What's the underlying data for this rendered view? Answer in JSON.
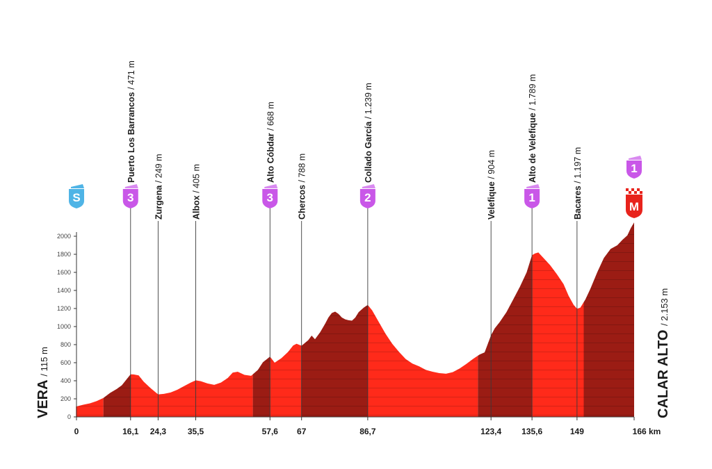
{
  "chart_data": {
    "type": "area",
    "title": "",
    "xlabel": "",
    "ylabel": "",
    "xlim": [
      0,
      166
    ],
    "ylim": [
      0,
      2153
    ],
    "y_ticks": [
      0,
      200,
      400,
      600,
      800,
      1000,
      1200,
      1400,
      1600,
      1800,
      2000
    ],
    "x_ticks": [
      {
        "km": 0,
        "label": "0"
      },
      {
        "km": 16.1,
        "label": "16,1"
      },
      {
        "km": 24.3,
        "label": "24,3"
      },
      {
        "km": 35.5,
        "label": "35,5"
      },
      {
        "km": 57.6,
        "label": "57,6"
      },
      {
        "km": 67,
        "label": "67"
      },
      {
        "km": 86.7,
        "label": "86,7"
      },
      {
        "km": 123.4,
        "label": "123,4"
      },
      {
        "km": 135.6,
        "label": "135,6"
      },
      {
        "km": 149,
        "label": "149"
      },
      {
        "km": 166,
        "label": "166 km"
      }
    ],
    "start": {
      "name": "VERA",
      "alt": "/ 115 m",
      "badge": "S"
    },
    "finish": {
      "name": "CALAR ALTO",
      "alt": "/ 2.153 m",
      "badge": "M",
      "category": "1"
    },
    "waypoints": [
      {
        "km": 16.1,
        "name": "Puerto Los Barrancos",
        "alt": "/ 471 m",
        "category": "3"
      },
      {
        "km": 24.3,
        "name": "Zurgena",
        "alt": "/ 249 m",
        "category": ""
      },
      {
        "km": 35.5,
        "name": "Albox",
        "alt": "/ 405 m",
        "category": ""
      },
      {
        "km": 57.6,
        "name": "Alto Cóbdar",
        "alt": "/ 668 m",
        "category": "3"
      },
      {
        "km": 67,
        "name": "Chercos",
        "alt": "/ 788 m",
        "category": ""
      },
      {
        "km": 86.7,
        "name": "Collado García",
        "alt": "/ 1.239 m",
        "category": "2"
      },
      {
        "km": 123.4,
        "name": "Velefique",
        "alt": "/ 904 m",
        "category": ""
      },
      {
        "km": 135.6,
        "name": "Alto de Velefique",
        "alt": "/ 1.789 m",
        "category": "1"
      },
      {
        "km": 149,
        "name": "Bacares",
        "alt": "/ 1.197 m",
        "category": ""
      }
    ],
    "profile": [
      [
        0,
        115
      ],
      [
        2,
        135
      ],
      [
        4,
        150
      ],
      [
        6,
        175
      ],
      [
        8,
        210
      ],
      [
        10,
        265
      ],
      [
        12,
        310
      ],
      [
        13.5,
        350
      ],
      [
        15,
        420
      ],
      [
        16.1,
        471
      ],
      [
        17,
        470
      ],
      [
        18.5,
        460
      ],
      [
        20,
        390
      ],
      [
        22,
        320
      ],
      [
        24.3,
        249
      ],
      [
        26,
        255
      ],
      [
        28,
        270
      ],
      [
        30,
        300
      ],
      [
        32,
        340
      ],
      [
        34,
        380
      ],
      [
        35.5,
        405
      ],
      [
        37,
        395
      ],
      [
        39,
        370
      ],
      [
        41,
        355
      ],
      [
        43,
        380
      ],
      [
        45,
        430
      ],
      [
        46.5,
        490
      ],
      [
        48,
        500
      ],
      [
        50,
        465
      ],
      [
        52,
        455
      ],
      [
        54,
        520
      ],
      [
        55.5,
        605
      ],
      [
        57.6,
        668
      ],
      [
        59,
        600
      ],
      [
        61,
        650
      ],
      [
        63,
        720
      ],
      [
        64.5,
        790
      ],
      [
        65.5,
        810
      ],
      [
        67,
        788
      ],
      [
        69,
        850
      ],
      [
        70,
        900
      ],
      [
        71,
        860
      ],
      [
        72.5,
        935
      ],
      [
        74,
        1030
      ],
      [
        75,
        1100
      ],
      [
        76,
        1150
      ],
      [
        77,
        1165
      ],
      [
        78,
        1140
      ],
      [
        79,
        1100
      ],
      [
        80,
        1080
      ],
      [
        81,
        1070
      ],
      [
        82,
        1065
      ],
      [
        83,
        1100
      ],
      [
        84,
        1160
      ],
      [
        85.5,
        1210
      ],
      [
        86.7,
        1239
      ],
      [
        88,
        1180
      ],
      [
        90,
        1050
      ],
      [
        92,
        920
      ],
      [
        94,
        810
      ],
      [
        96,
        720
      ],
      [
        98,
        640
      ],
      [
        100,
        590
      ],
      [
        102,
        560
      ],
      [
        104,
        520
      ],
      [
        106,
        500
      ],
      [
        108,
        485
      ],
      [
        110,
        478
      ],
      [
        112,
        495
      ],
      [
        114,
        535
      ],
      [
        116,
        585
      ],
      [
        118,
        640
      ],
      [
        120,
        690
      ],
      [
        121.5,
        715
      ],
      [
        123.4,
        904
      ],
      [
        124.5,
        980
      ],
      [
        126,
        1050
      ],
      [
        128,
        1160
      ],
      [
        130,
        1300
      ],
      [
        132,
        1440
      ],
      [
        134,
        1600
      ],
      [
        135.6,
        1789
      ],
      [
        136.5,
        1810
      ],
      [
        137.5,
        1820
      ],
      [
        139,
        1760
      ],
      [
        141,
        1680
      ],
      [
        143,
        1580
      ],
      [
        145,
        1470
      ],
      [
        146.5,
        1340
      ],
      [
        148,
        1240
      ],
      [
        149,
        1197
      ],
      [
        150,
        1210
      ],
      [
        151.5,
        1300
      ],
      [
        153,
        1420
      ],
      [
        155,
        1600
      ],
      [
        157,
        1760
      ],
      [
        159,
        1860
      ],
      [
        161,
        1900
      ],
      [
        162.5,
        1960
      ],
      [
        164,
        2010
      ],
      [
        165,
        2090
      ],
      [
        166,
        2153
      ]
    ],
    "segments": [
      {
        "from": 0,
        "to": 8,
        "shade": "light"
      },
      {
        "from": 8,
        "to": 16.1,
        "shade": "dark"
      },
      {
        "from": 16.1,
        "to": 52.5,
        "shade": "light"
      },
      {
        "from": 52.5,
        "to": 57.6,
        "shade": "dark"
      },
      {
        "from": 57.6,
        "to": 67,
        "shade": "light"
      },
      {
        "from": 67,
        "to": 86.7,
        "shade": "dark"
      },
      {
        "from": 86.7,
        "to": 119.5,
        "shade": "light"
      },
      {
        "from": 119.5,
        "to": 135.6,
        "shade": "dark"
      },
      {
        "from": 135.6,
        "to": 151,
        "shade": "light"
      },
      {
        "from": 151,
        "to": 166,
        "shade": "dark"
      }
    ],
    "colors": {
      "light_fill": "#ff2a1a",
      "dark_fill": "#9b1c14",
      "stripe": "#6d120c",
      "badge_purple": "#c957e8",
      "badge_purple_light": "#d98af0",
      "badge_blue": "#4fb4e6",
      "badge_red": "#e8231c",
      "text": "#1a1a1a",
      "axis": "#333333"
    }
  }
}
